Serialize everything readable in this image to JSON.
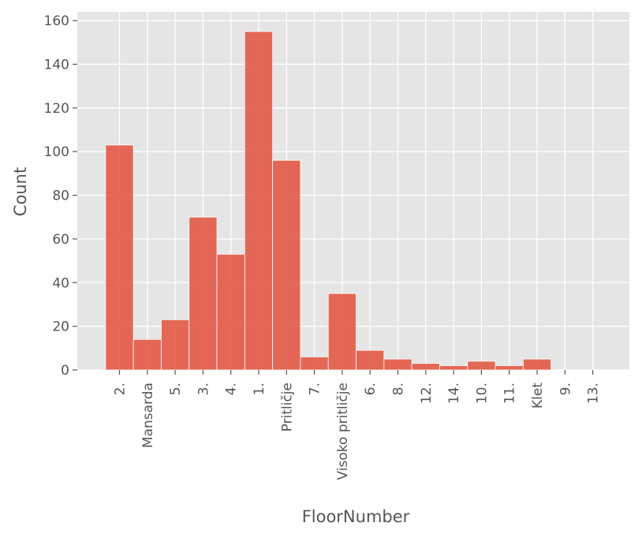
{
  "chart_data": {
    "type": "bar",
    "title": "",
    "xlabel": "FloorNumber",
    "ylabel": "Count",
    "categories": [
      "2.",
      "Mansarda",
      "5.",
      "3.",
      "4.",
      "1.",
      "Pritličje",
      "7.",
      "Visoko pritličje",
      "6.",
      "8.",
      "12.",
      "14.",
      "10.",
      "11.",
      "Klet",
      "9.",
      "13."
    ],
    "values": [
      103,
      14,
      23,
      70,
      53,
      155,
      96,
      6,
      35,
      9,
      5,
      3,
      2,
      4,
      2,
      5,
      0,
      0
    ],
    "ylim": [
      0,
      164
    ],
    "yticks": [
      0,
      20,
      40,
      60,
      80,
      100,
      120,
      140,
      160
    ],
    "grid": true,
    "colors": {
      "bar": "#e24a33",
      "background": "#e5e5e5",
      "grid": "#ffffff",
      "text": "#555555"
    }
  }
}
